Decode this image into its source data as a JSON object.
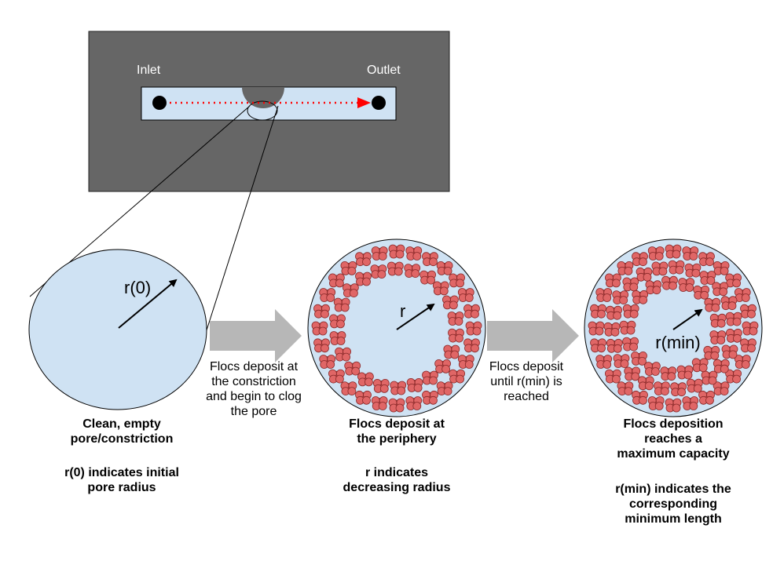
{
  "colors": {
    "device_bg": "#666666",
    "pore_fill": "#cfe2f3",
    "floc_fill": "#e06666",
    "floc_stroke": "#8a2a2a",
    "flow_arrow": "#ff0000",
    "process_arrow": "#b7b7b7"
  },
  "device": {
    "inlet_label": "Inlet",
    "outlet_label": "Outlet"
  },
  "stage1": {
    "radius_label": "r(0)",
    "caption_line1": "Clean, empty",
    "caption_line2": "pore/constriction",
    "note_line1": "r(0) indicates initial",
    "note_line2": "pore radius"
  },
  "transition1": {
    "line1": "Flocs deposit at",
    "line2": "the constriction",
    "line3": "and begin to clog",
    "line4": "the pore"
  },
  "stage2": {
    "radius_label": "r",
    "caption_line1": "Flocs deposit at",
    "caption_line2": "the periphery",
    "note_line1": "r indicates",
    "note_line2": "decreasing radius"
  },
  "transition2": {
    "line1": "Flocs deposit",
    "line2": "until r(min) is",
    "line3": "reached"
  },
  "stage3": {
    "radius_label": "r(min)",
    "caption_line1": "Flocs deposition",
    "caption_line2": "reaches a",
    "caption_line3": "maximum capacity",
    "note_line1": "r(min) indicates the",
    "note_line2": "corresponding",
    "note_line3": "minimum length"
  }
}
